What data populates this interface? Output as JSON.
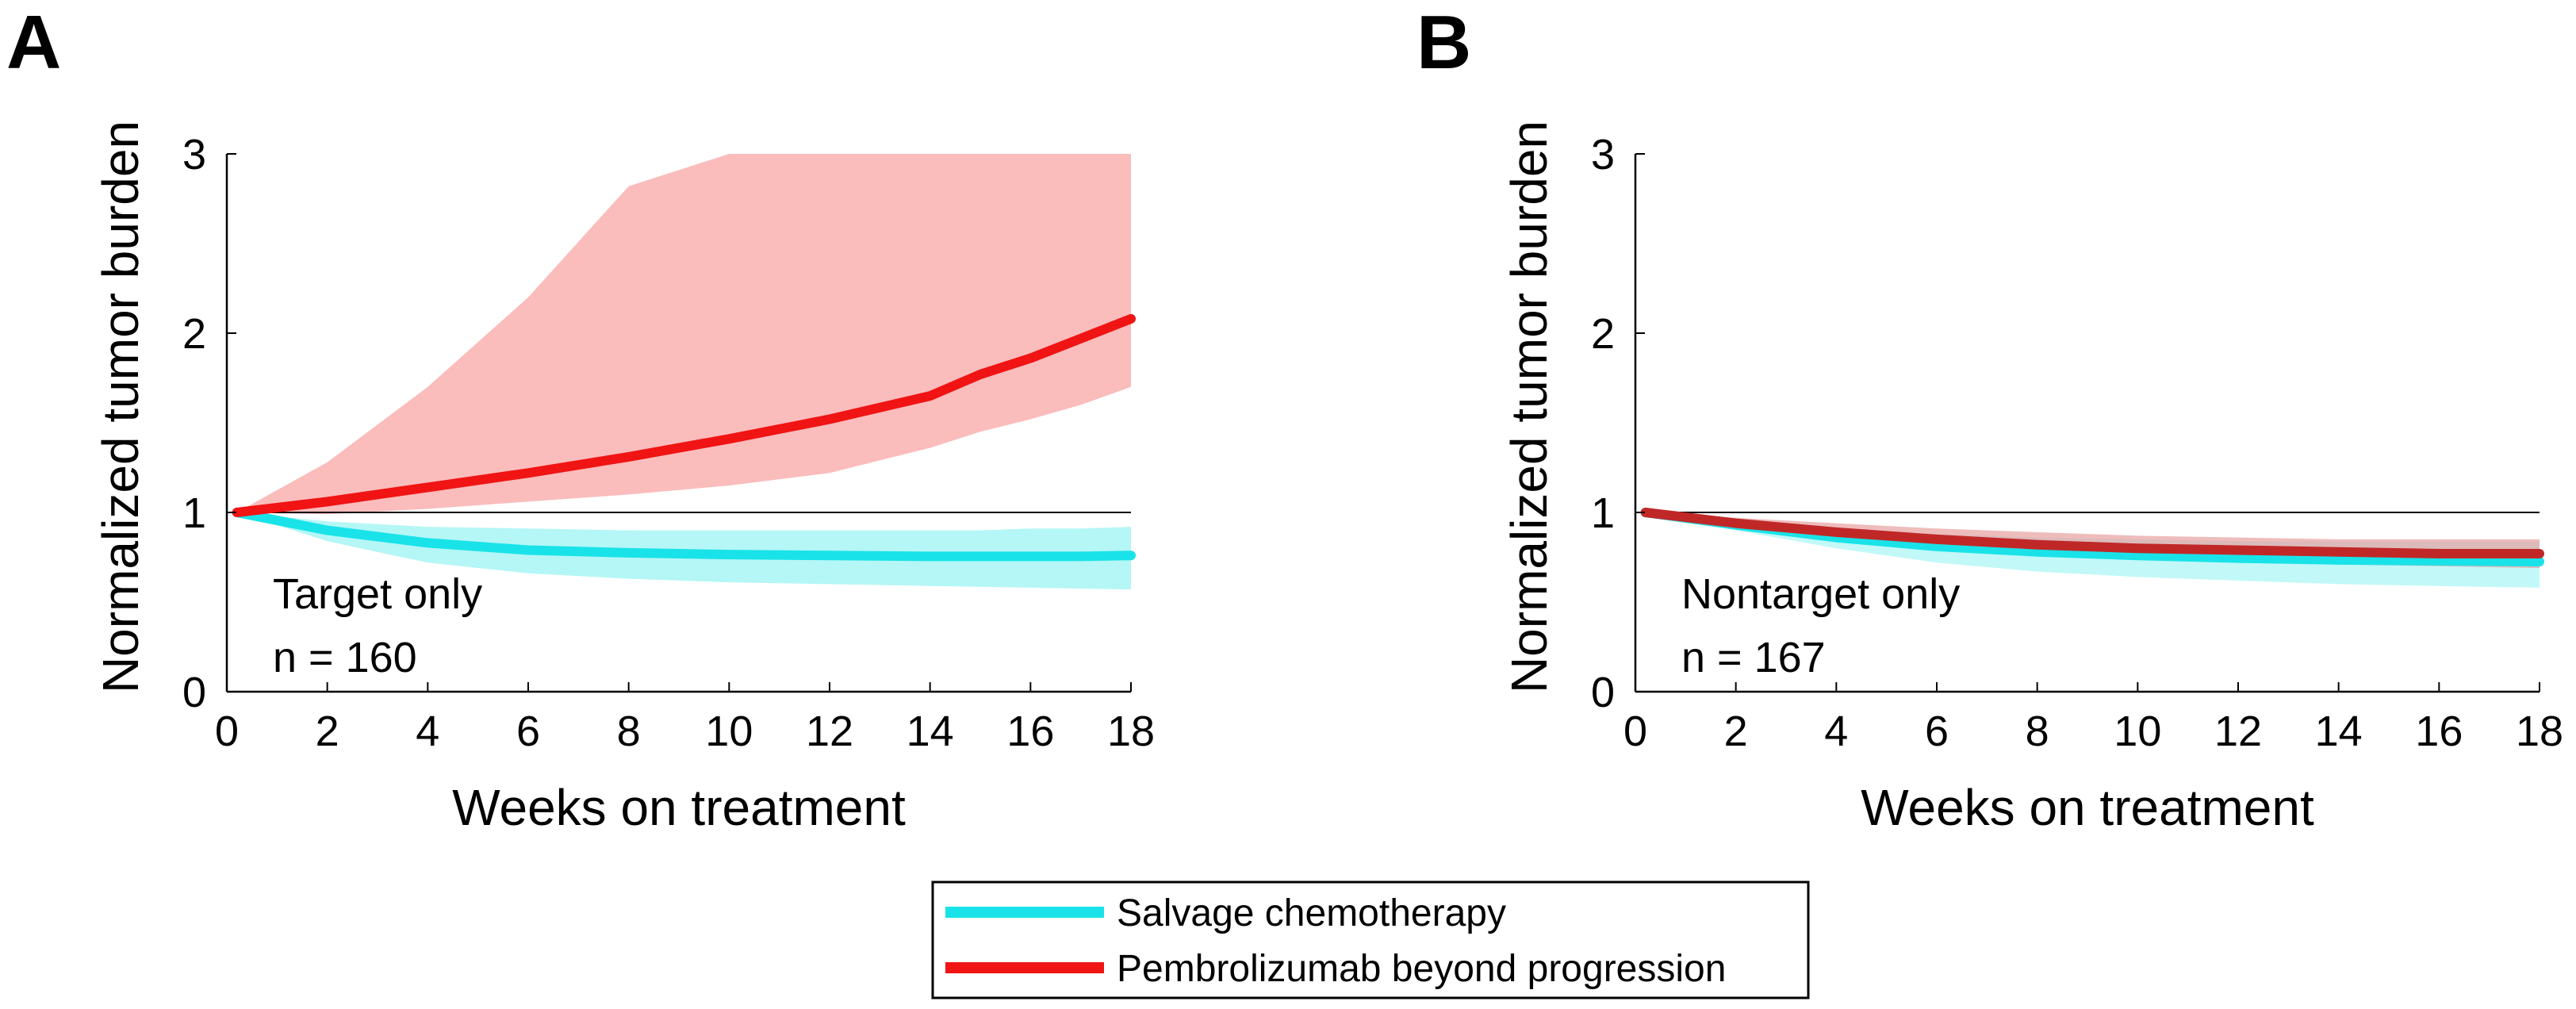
{
  "figure": {
    "legend": {
      "entries": [
        {
          "label": "Salvage chemotherapy",
          "color": "#19E3E8"
        },
        {
          "label": "Pembrolizumab beyond progression",
          "color": "#F01414"
        }
      ]
    }
  },
  "chart_data": [
    {
      "type": "line",
      "panel_label": "A",
      "title": "",
      "xlabel": "Weeks on treatment",
      "ylabel": "Normalized tumor burden",
      "xlim": [
        0,
        18
      ],
      "ylim": [
        0,
        3
      ],
      "xticks": [
        "0",
        "2",
        "4",
        "6",
        "8",
        "10",
        "12",
        "14",
        "16",
        "18"
      ],
      "yticks": [
        "0",
        "1",
        "2",
        "3"
      ],
      "reference_line": 1,
      "annotation": [
        "Target only",
        "n = 160"
      ],
      "x": [
        0.2,
        2,
        4,
        6,
        8,
        10,
        12,
        14,
        15,
        16,
        17,
        18
      ],
      "series": [
        {
          "name": "Salvage chemotherapy",
          "color": "#19E3E8",
          "band_color": "#A8F5F5",
          "values": [
            1.0,
            0.9,
            0.83,
            0.79,
            0.775,
            0.765,
            0.76,
            0.755,
            0.755,
            0.755,
            0.755,
            0.76
          ],
          "lower": [
            1.0,
            0.84,
            0.72,
            0.66,
            0.63,
            0.61,
            0.6,
            0.59,
            0.585,
            0.58,
            0.575,
            0.57
          ],
          "upper": [
            1.0,
            0.95,
            0.92,
            0.91,
            0.9,
            0.9,
            0.9,
            0.9,
            0.9,
            0.91,
            0.91,
            0.92
          ]
        },
        {
          "name": "Pembrolizumab beyond progression",
          "color": "#F01414",
          "band_color": "#FAB0B0",
          "values": [
            1.0,
            1.06,
            1.14,
            1.22,
            1.31,
            1.41,
            1.52,
            1.65,
            1.77,
            1.86,
            1.97,
            2.08
          ],
          "lower": [
            1.0,
            0.99,
            1.02,
            1.06,
            1.1,
            1.15,
            1.22,
            1.36,
            1.45,
            1.52,
            1.6,
            1.7
          ],
          "upper": [
            1.0,
            1.28,
            1.7,
            2.2,
            2.82,
            3.0,
            3.0,
            3.0,
            3.0,
            3.0,
            3.0,
            3.0
          ]
        }
      ]
    },
    {
      "type": "line",
      "panel_label": "B",
      "title": "",
      "xlabel": "Weeks on treatment",
      "ylabel": "Normalized tumor burden",
      "xlim": [
        0,
        18
      ],
      "ylim": [
        0,
        3
      ],
      "xticks": [
        "0",
        "2",
        "4",
        "6",
        "8",
        "10",
        "12",
        "14",
        "16",
        "18"
      ],
      "yticks": [
        "0",
        "1",
        "2",
        "3"
      ],
      "reference_line": 1,
      "annotation": [
        "Nontarget only",
        "n = 167"
      ],
      "x": [
        0.2,
        2,
        4,
        6,
        8,
        10,
        12,
        14,
        16,
        18
      ],
      "series": [
        {
          "name": "Salvage chemotherapy",
          "color": "#19E3E8",
          "band_color": "#A8F5F5",
          "values": [
            1.0,
            0.93,
            0.86,
            0.81,
            0.78,
            0.76,
            0.745,
            0.735,
            0.73,
            0.725
          ],
          "lower": [
            1.0,
            0.9,
            0.8,
            0.72,
            0.67,
            0.64,
            0.62,
            0.6,
            0.59,
            0.58
          ],
          "upper": [
            1.0,
            0.96,
            0.91,
            0.88,
            0.86,
            0.85,
            0.84,
            0.84,
            0.84,
            0.84
          ]
        },
        {
          "name": "Pembrolizumab beyond progression",
          "color": "#C02828",
          "band_color": "#E8A0A0",
          "values": [
            1.0,
            0.94,
            0.89,
            0.85,
            0.82,
            0.8,
            0.79,
            0.78,
            0.77,
            0.77
          ],
          "lower": [
            1.0,
            0.91,
            0.84,
            0.79,
            0.76,
            0.74,
            0.72,
            0.71,
            0.7,
            0.69
          ],
          "upper": [
            1.0,
            0.97,
            0.94,
            0.91,
            0.89,
            0.87,
            0.86,
            0.85,
            0.85,
            0.85
          ]
        }
      ]
    }
  ]
}
